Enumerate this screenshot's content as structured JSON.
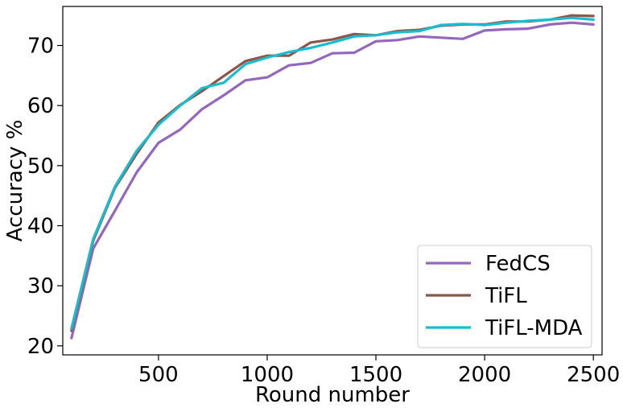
{
  "chart_data": {
    "type": "line",
    "title": "",
    "xlabel": "Round number",
    "ylabel": "Accuracy %",
    "xlim": [
      60,
      2540
    ],
    "ylim": [
      18.5,
      76.5
    ],
    "xticks": [
      500,
      1000,
      1500,
      2000,
      2500
    ],
    "yticks": [
      20,
      30,
      40,
      50,
      60,
      70
    ],
    "grid": false,
    "legend_position": "lower right",
    "x": [
      100,
      200,
      300,
      400,
      500,
      600,
      700,
      800,
      900,
      1000,
      1100,
      1200,
      1300,
      1400,
      1500,
      1600,
      1700,
      1800,
      1900,
      2000,
      2100,
      2200,
      2300,
      2400,
      2500
    ],
    "series": [
      {
        "name": "FedCS",
        "color": "#9467bd",
        "values": [
          21.3,
          36.2,
          42.5,
          48.9,
          53.8,
          56.0,
          59.4,
          61.7,
          64.2,
          64.7,
          66.7,
          67.1,
          68.7,
          68.8,
          70.7,
          70.9,
          71.5,
          71.3,
          71.1,
          72.5,
          72.7,
          72.8,
          73.5,
          73.8,
          73.5
        ]
      },
      {
        "name": "TiFL",
        "color": "#8c564b",
        "values": [
          22.5,
          37.5,
          46.3,
          52.0,
          57.2,
          60.1,
          62.4,
          64.9,
          67.4,
          68.3,
          68.3,
          70.5,
          71.0,
          71.9,
          71.7,
          72.4,
          72.6,
          73.3,
          73.5,
          73.5,
          74.0,
          74.0,
          74.3,
          75.0,
          74.9
        ]
      },
      {
        "name": "TiFL-MDA",
        "color": "#17becf",
        "values": [
          22.9,
          37.8,
          46.5,
          52.5,
          56.8,
          60.0,
          62.9,
          63.8,
          66.9,
          68.0,
          68.9,
          69.6,
          70.5,
          71.5,
          71.7,
          72.2,
          72.4,
          73.4,
          73.6,
          73.4,
          73.8,
          74.1,
          74.3,
          74.6,
          74.3
        ]
      }
    ]
  }
}
